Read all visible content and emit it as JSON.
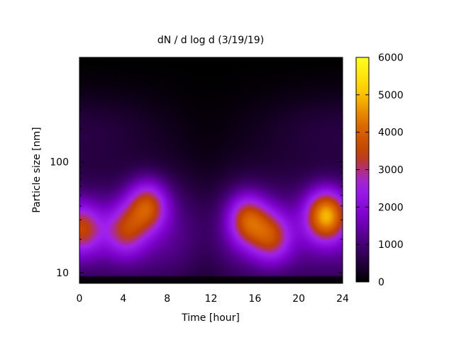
{
  "chart_data": {
    "type": "heatmap",
    "title": "dN / d log d (3/19/19)",
    "xlabel": "Time [hour]",
    "ylabel": "Particle size [nm]",
    "x_ticks": [
      "0",
      "4",
      "8",
      "12",
      "16",
      "20",
      "24"
    ],
    "y_ticks": [
      "10",
      "100"
    ],
    "y_scale": "log",
    "xlim": [
      0,
      24
    ],
    "ylim_nm": [
      8,
      880
    ],
    "colorbar": {
      "range": [
        0,
        6000
      ],
      "ticks": [
        "0",
        "1000",
        "2000",
        "3000",
        "4000",
        "5000",
        "6000"
      ],
      "colormap": [
        "#000000",
        "#3b0064",
        "#7a00c8",
        "#a020f0",
        "#c04000",
        "#e07000",
        "#ffd000",
        "#ffff20"
      ]
    },
    "concentration_peaks": [
      {
        "time_hr": 0.2,
        "size_nm": 25,
        "value": 3000
      },
      {
        "time_hr": 4.2,
        "size_nm": 24,
        "value": 2600
      },
      {
        "time_hr": 6.2,
        "size_nm": 40,
        "value": 3600
      },
      {
        "time_hr": 15.3,
        "size_nm": 30,
        "value": 3500
      },
      {
        "time_hr": 17.5,
        "size_nm": 21,
        "value": 2900
      },
      {
        "time_hr": 22.5,
        "size_nm": 33,
        "value": 5000
      }
    ],
    "grid": false,
    "legend": "none"
  }
}
